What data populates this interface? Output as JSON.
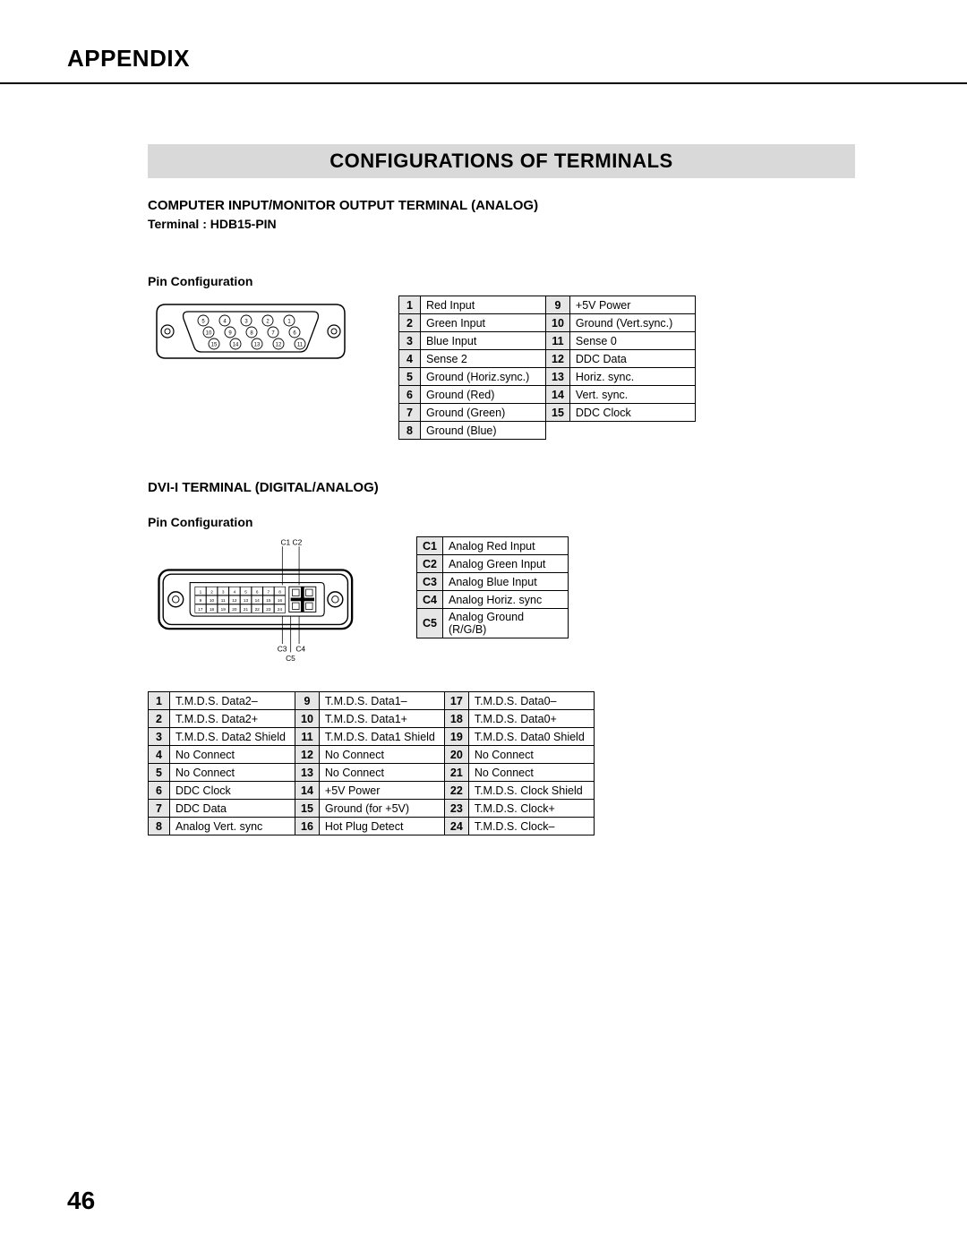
{
  "appendix": "APPENDIX",
  "section_title": "CONFIGURATIONS OF TERMINALS",
  "hdb": {
    "heading": "COMPUTER INPUT/MONITOR OUTPUT TERMINAL (ANALOG)",
    "terminal": "Terminal : HDB15-PIN",
    "pinconf": "Pin Configuration",
    "pins_left": [
      {
        "n": "1",
        "v": "Red Input"
      },
      {
        "n": "2",
        "v": "Green Input"
      },
      {
        "n": "3",
        "v": "Blue Input"
      },
      {
        "n": "4",
        "v": "Sense 2"
      },
      {
        "n": "5",
        "v": "Ground (Horiz.sync.)"
      },
      {
        "n": "6",
        "v": "Ground (Red)"
      },
      {
        "n": "7",
        "v": "Ground (Green)"
      },
      {
        "n": "8",
        "v": "Ground (Blue)"
      }
    ],
    "pins_right": [
      {
        "n": "9",
        "v": "+5V Power"
      },
      {
        "n": "10",
        "v": "Ground (Vert.sync.)"
      },
      {
        "n": "11",
        "v": "Sense 0"
      },
      {
        "n": "12",
        "v": "DDC Data"
      },
      {
        "n": "13",
        "v": "Horiz. sync."
      },
      {
        "n": "14",
        "v": "Vert. sync."
      },
      {
        "n": "15",
        "v": "DDC Clock"
      }
    ],
    "connector_pins_row1": [
      "5",
      "4",
      "3",
      "2",
      "1"
    ],
    "connector_pins_row2": [
      "10",
      "9",
      "8",
      "7",
      "6"
    ],
    "connector_pins_row3": [
      "15",
      "14",
      "13",
      "12",
      "11"
    ]
  },
  "dvi": {
    "heading": "DVI-I TERMINAL (DIGITAL/ANALOG)",
    "pinconf": "Pin Configuration",
    "c_labels_top": "C1  C2",
    "c_labels_bottom1": "C3",
    "c_labels_bottom2": "C4",
    "c_labels_bottom3": "C5",
    "ctable": [
      {
        "n": "C1",
        "v": "Analog Red Input"
      },
      {
        "n": "C2",
        "v": "Analog Green Input"
      },
      {
        "n": "C3",
        "v": "Analog Blue Input"
      },
      {
        "n": "C4",
        "v": "Analog Horiz. sync"
      },
      {
        "n": "C5",
        "v": "Analog Ground (R/G/B)"
      }
    ],
    "col1": [
      {
        "n": "1",
        "v": "T.M.D.S. Data2–"
      },
      {
        "n": "2",
        "v": "T.M.D.S. Data2+"
      },
      {
        "n": "3",
        "v": "T.M.D.S. Data2 Shield"
      },
      {
        "n": "4",
        "v": "No Connect"
      },
      {
        "n": "5",
        "v": "No Connect"
      },
      {
        "n": "6",
        "v": "DDC Clock"
      },
      {
        "n": "7",
        "v": "DDC Data"
      },
      {
        "n": "8",
        "v": "Analog Vert. sync"
      }
    ],
    "col2": [
      {
        "n": "9",
        "v": "T.M.D.S. Data1–"
      },
      {
        "n": "10",
        "v": "T.M.D.S. Data1+"
      },
      {
        "n": "11",
        "v": "T.M.D.S. Data1 Shield"
      },
      {
        "n": "12",
        "v": "No Connect"
      },
      {
        "n": "13",
        "v": "No Connect"
      },
      {
        "n": "14",
        "v": "+5V Power"
      },
      {
        "n": "15",
        "v": "Ground (for +5V)"
      },
      {
        "n": "16",
        "v": "Hot Plug Detect"
      }
    ],
    "col3": [
      {
        "n": "17",
        "v": "T.M.D.S. Data0–"
      },
      {
        "n": "18",
        "v": "T.M.D.S. Data0+"
      },
      {
        "n": "19",
        "v": "T.M.D.S. Data0 Shield"
      },
      {
        "n": "20",
        "v": "No Connect"
      },
      {
        "n": "21",
        "v": "No Connect"
      },
      {
        "n": "22",
        "v": "T.M.D.S. Clock Shield"
      },
      {
        "n": "23",
        "v": "T.M.D.S. Clock+"
      },
      {
        "n": "24",
        "v": "T.M.D.S. Clock–"
      }
    ],
    "pin_grid_row1": [
      "1",
      "2",
      "3",
      "4",
      "5",
      "6",
      "7",
      "8"
    ],
    "pin_grid_row2": [
      "9",
      "10",
      "11",
      "12",
      "13",
      "14",
      "15",
      "16"
    ],
    "pin_grid_row3": [
      "17",
      "18",
      "19",
      "20",
      "21",
      "22",
      "23",
      "24"
    ]
  },
  "page_number": "46",
  "colors": {
    "title_bar_bg": "#d9d9d9",
    "num_cell_bg": "#e6e6e6",
    "border": "#000000",
    "text": "#000000",
    "bg": "#ffffff"
  }
}
